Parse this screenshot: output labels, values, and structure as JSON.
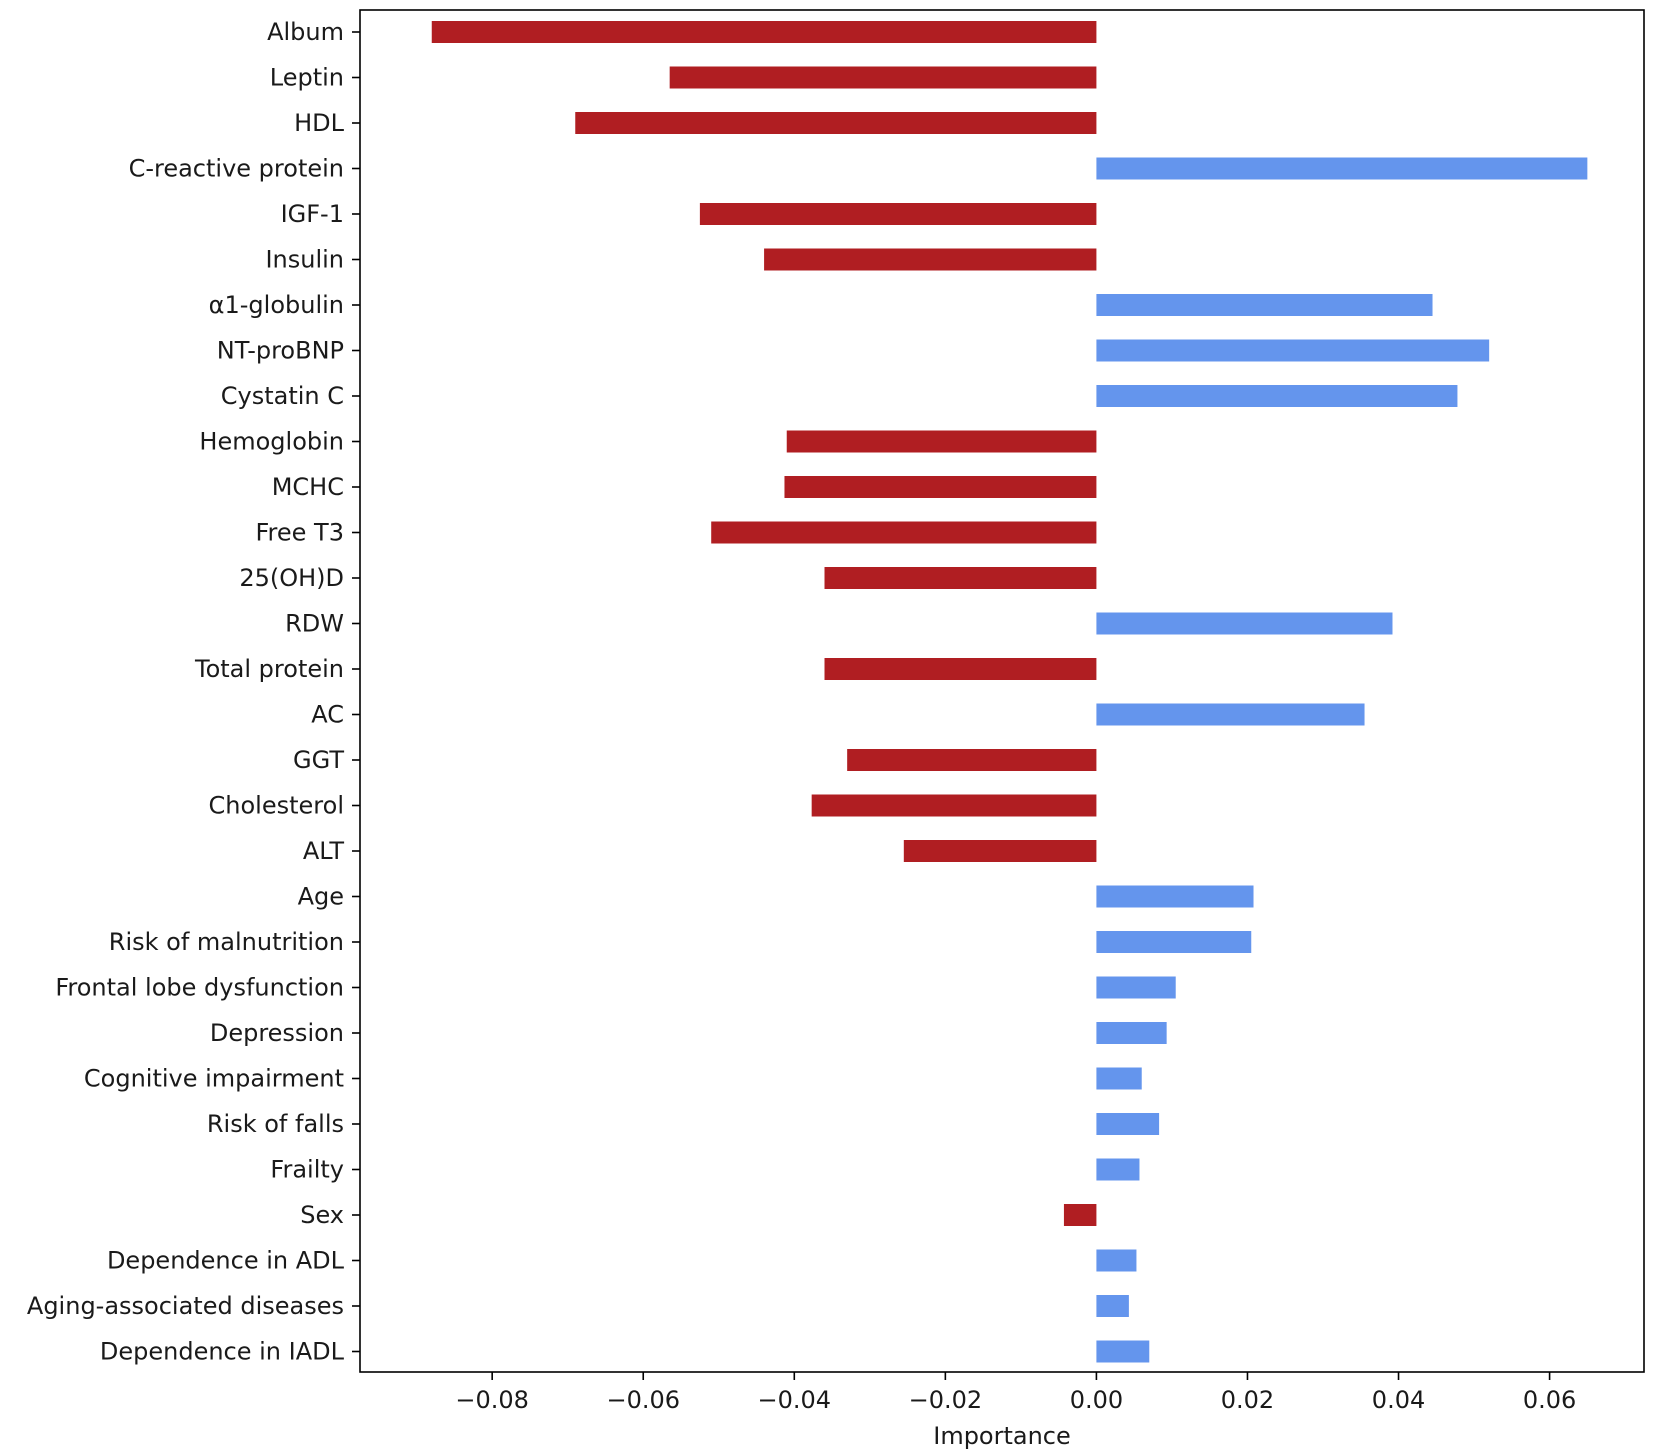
{
  "chart_data": {
    "type": "bar",
    "orientation": "horizontal",
    "title": "",
    "xlabel": "Importance",
    "ylabel": "",
    "xlim": [
      -0.0975,
      0.0725
    ],
    "xticks": [
      -0.08,
      -0.06,
      -0.04,
      -0.02,
      0.0,
      0.02,
      0.04,
      0.06
    ],
    "xtick_labels": [
      "−0.08",
      "−0.06",
      "−0.04",
      "−0.02",
      "0.00",
      "0.02",
      "0.04",
      "0.06"
    ],
    "grid": false,
    "legend": "none",
    "colors": {
      "negative": "#b01e22",
      "positive": "#6495ed"
    },
    "categories": [
      "Album",
      "Leptin",
      "HDL",
      "C-reactive protein",
      "IGF-1",
      "Insulin",
      "α1-globulin",
      "NT-proBNP",
      "Cystatin C",
      "Hemoglobin",
      "MCHC",
      "Free T3",
      "25(OH)D",
      "RDW",
      "Total protein",
      "AC",
      "GGT",
      "Cholesterol",
      "ALT",
      "Age",
      "Risk of malnutrition",
      "Frontal lobe dysfunction",
      "Depression",
      "Cognitive impairment",
      "Risk of falls",
      "Frailty",
      "Sex",
      "Dependence in ADL",
      "Aging-associated diseases",
      "Dependence in IADL"
    ],
    "values": [
      -0.088,
      -0.0565,
      -0.069,
      0.065,
      -0.0525,
      -0.044,
      0.0445,
      0.052,
      0.0478,
      -0.041,
      -0.0413,
      -0.051,
      -0.036,
      0.0392,
      -0.036,
      0.0355,
      -0.033,
      -0.0377,
      -0.0255,
      0.0208,
      0.0205,
      0.0105,
      0.0093,
      0.006,
      0.0083,
      0.0057,
      -0.0043,
      0.0053,
      0.0043,
      0.007
    ]
  }
}
